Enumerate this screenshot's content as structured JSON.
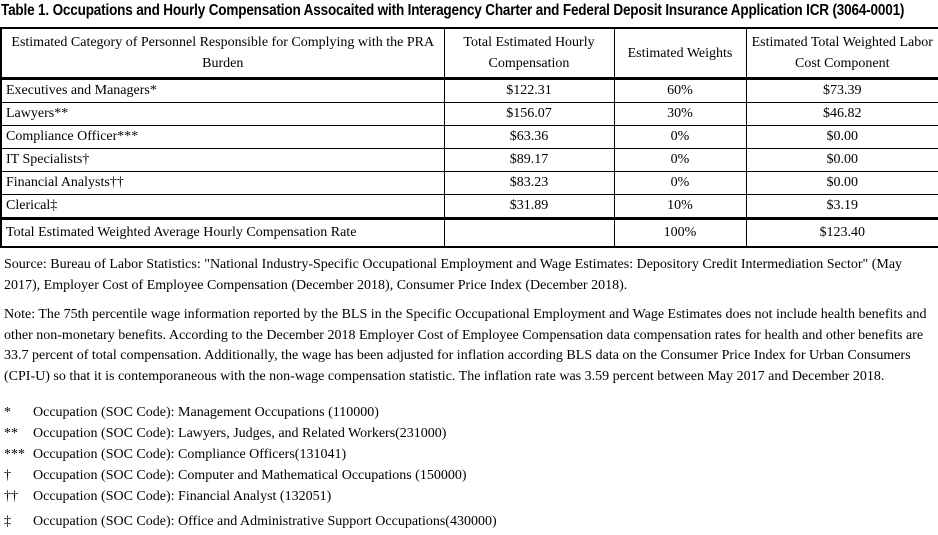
{
  "title": "Table 1. Occupations and Hourly Compensation Assocaited with Interagency Charter and Federal Deposit Insurance Application ICR (3064-0001)",
  "table": {
    "headers": [
      "Estimated Category of Personnel Responsible for Complying with the PRA Burden",
      "Total Estimated Hourly Compensation",
      "Estimated Weights",
      "Estimated Total Weighted Labor Cost Component"
    ],
    "rows": [
      {
        "category": "Executives and Managers*",
        "hourly": "$122.31",
        "weight": "60%",
        "weighted": "$73.39"
      },
      {
        "category": "Lawyers**",
        "hourly": "$156.07",
        "weight": "30%",
        "weighted": "$46.82"
      },
      {
        "category": "Compliance Officer***",
        "hourly": "$63.36",
        "weight": "0%",
        "weighted": "$0.00"
      },
      {
        "category": "IT Specialists†",
        "hourly": "$89.17",
        "weight": "0%",
        "weighted": "$0.00"
      },
      {
        "category": "Financial Analysts††",
        "hourly": "$83.23",
        "weight": "0%",
        "weighted": "$0.00"
      },
      {
        "category": "Clerical‡",
        "hourly": "$31.89",
        "weight": "10%",
        "weighted": "$3.19"
      }
    ],
    "total_row": {
      "category": "Total Estimated Weighted Average Hourly Compensation Rate",
      "hourly": "",
      "weight": "100%",
      "weighted": "$123.40"
    }
  },
  "source": "Source: Bureau of Labor Statistics: \"National Industry-Specific Occupational Employment and Wage Estimates: Depository Credit Intermediation Sector\" (May 2017), Employer Cost of Employee Compensation (December 2018), Consumer Price Index (December 2018).",
  "note": "Note: The 75th percentile wage information reported by the BLS in the Specific Occupational Employment and Wage Estimates does not include health benefits and other non-monetary benefits. According to the December 2018 Employer Cost of Employee Compensation data compensation rates for health and other benefits are 33.7 percent of total compensation. Additionally, the wage has been adjusted for inflation according BLS data on the Consumer Price Index for Urban Consumers (CPI-U) so that it is contemporaneous with the non-wage compensation statistic. The inflation rate was 3.59 percent between May 2017 and December 2018.",
  "footnotes": [
    {
      "symbol": "*",
      "text": "Occupation (SOC Code): Management Occupations (110000)"
    },
    {
      "symbol": "**",
      "text": "Occupation (SOC Code): Lawyers, Judges, and Related Workers(231000)"
    },
    {
      "symbol": "***",
      "text": "Occupation (SOC Code): Compliance Officers(131041)"
    },
    {
      "symbol": "†",
      "text": "Occupation (SOC Code): Computer and Mathematical Occupations (150000)"
    },
    {
      "symbol": "††",
      "text": "Occupation (SOC Code): Financial Analyst (132051)"
    },
    {
      "symbol": "‡",
      "text": "Occupation (SOC Code): Office and Administrative Support Occupations(430000)"
    }
  ],
  "colors": {
    "text": "#000000",
    "background": "#ffffff",
    "border": "#000000"
  }
}
